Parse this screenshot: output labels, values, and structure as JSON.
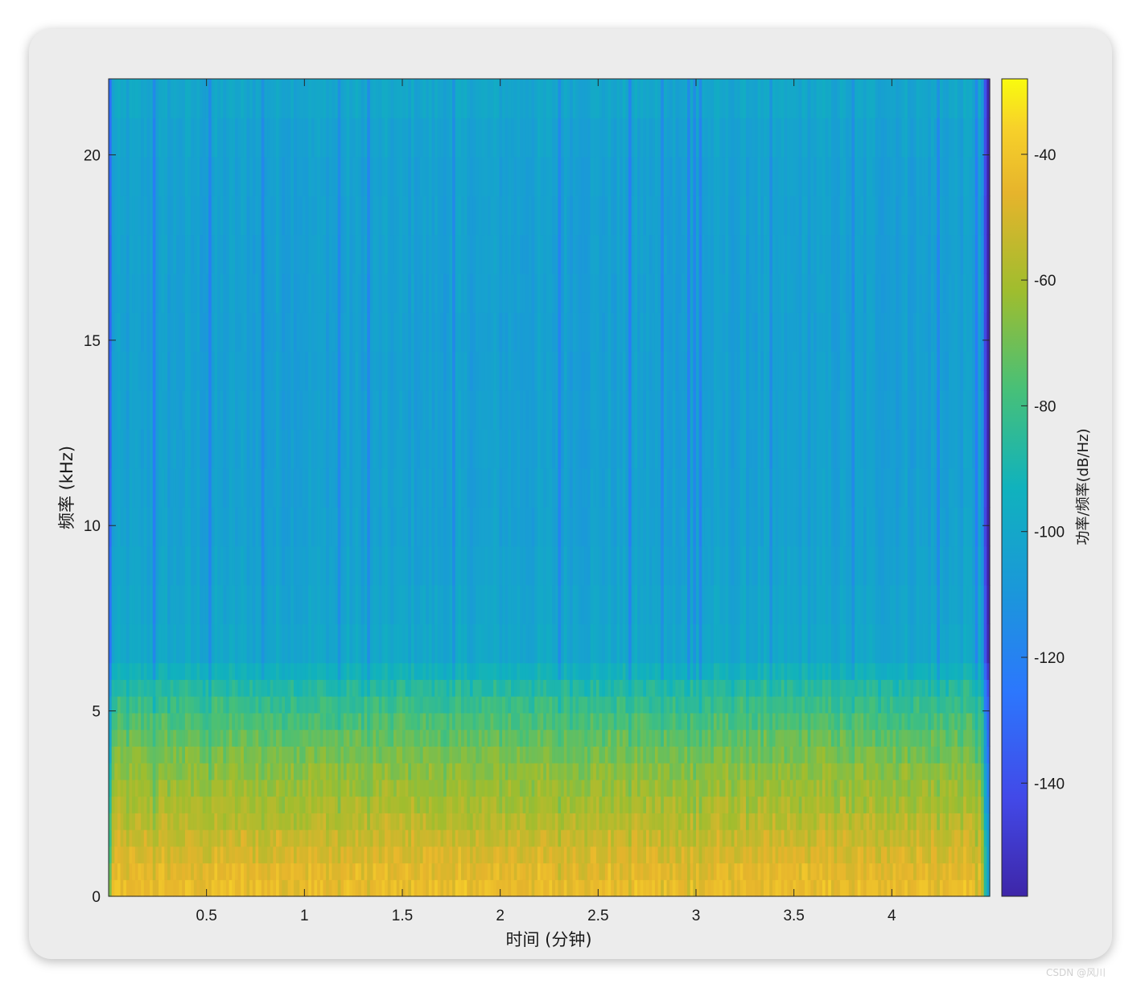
{
  "chart_data": {
    "type": "heatmap",
    "subtype": "spectrogram",
    "xlabel": "时间 (分钟)",
    "ylabel": "频率 (kHz)",
    "colorbar_label": "功率/频率(dB/Hz)",
    "colormap": "parula",
    "x_range": [
      0,
      4.5
    ],
    "y_range": [
      0,
      22.05
    ],
    "x_ticks": [
      0.5,
      1,
      1.5,
      2,
      2.5,
      3,
      3.5,
      4
    ],
    "x_tick_labels": [
      "0.5",
      "1",
      "1.5",
      "2",
      "2.5",
      "3",
      "3.5",
      "4"
    ],
    "y_ticks": [
      0,
      5,
      10,
      15,
      20
    ],
    "y_tick_labels": [
      "0",
      "5",
      "10",
      "15",
      "20"
    ],
    "color_range": [
      -158,
      -28
    ],
    "colorbar_ticks": [
      -40,
      -60,
      -80,
      -100,
      -120,
      -140
    ],
    "colorbar_tick_labels": [
      "-40",
      "-60",
      "-80",
      "-100",
      "-120",
      "-140"
    ],
    "frequency_profile": [
      {
        "freq_khz": 0.3,
        "power_db": -44
      },
      {
        "freq_khz": 0.8,
        "power_db": -47
      },
      {
        "freq_khz": 1.5,
        "power_db": -52
      },
      {
        "freq_khz": 2.5,
        "power_db": -60
      },
      {
        "freq_khz": 3.5,
        "power_db": -66
      },
      {
        "freq_khz": 4.5,
        "power_db": -75
      },
      {
        "freq_khz": 5.5,
        "power_db": -85
      },
      {
        "freq_khz": 6.5,
        "power_db": -100
      },
      {
        "freq_khz": 10,
        "power_db": -104
      },
      {
        "freq_khz": 15,
        "power_db": -105
      },
      {
        "freq_khz": 20,
        "power_db": -104
      },
      {
        "freq_khz": 22,
        "power_db": -100
      }
    ],
    "grid": false
  },
  "watermark": "CSDN @风川"
}
